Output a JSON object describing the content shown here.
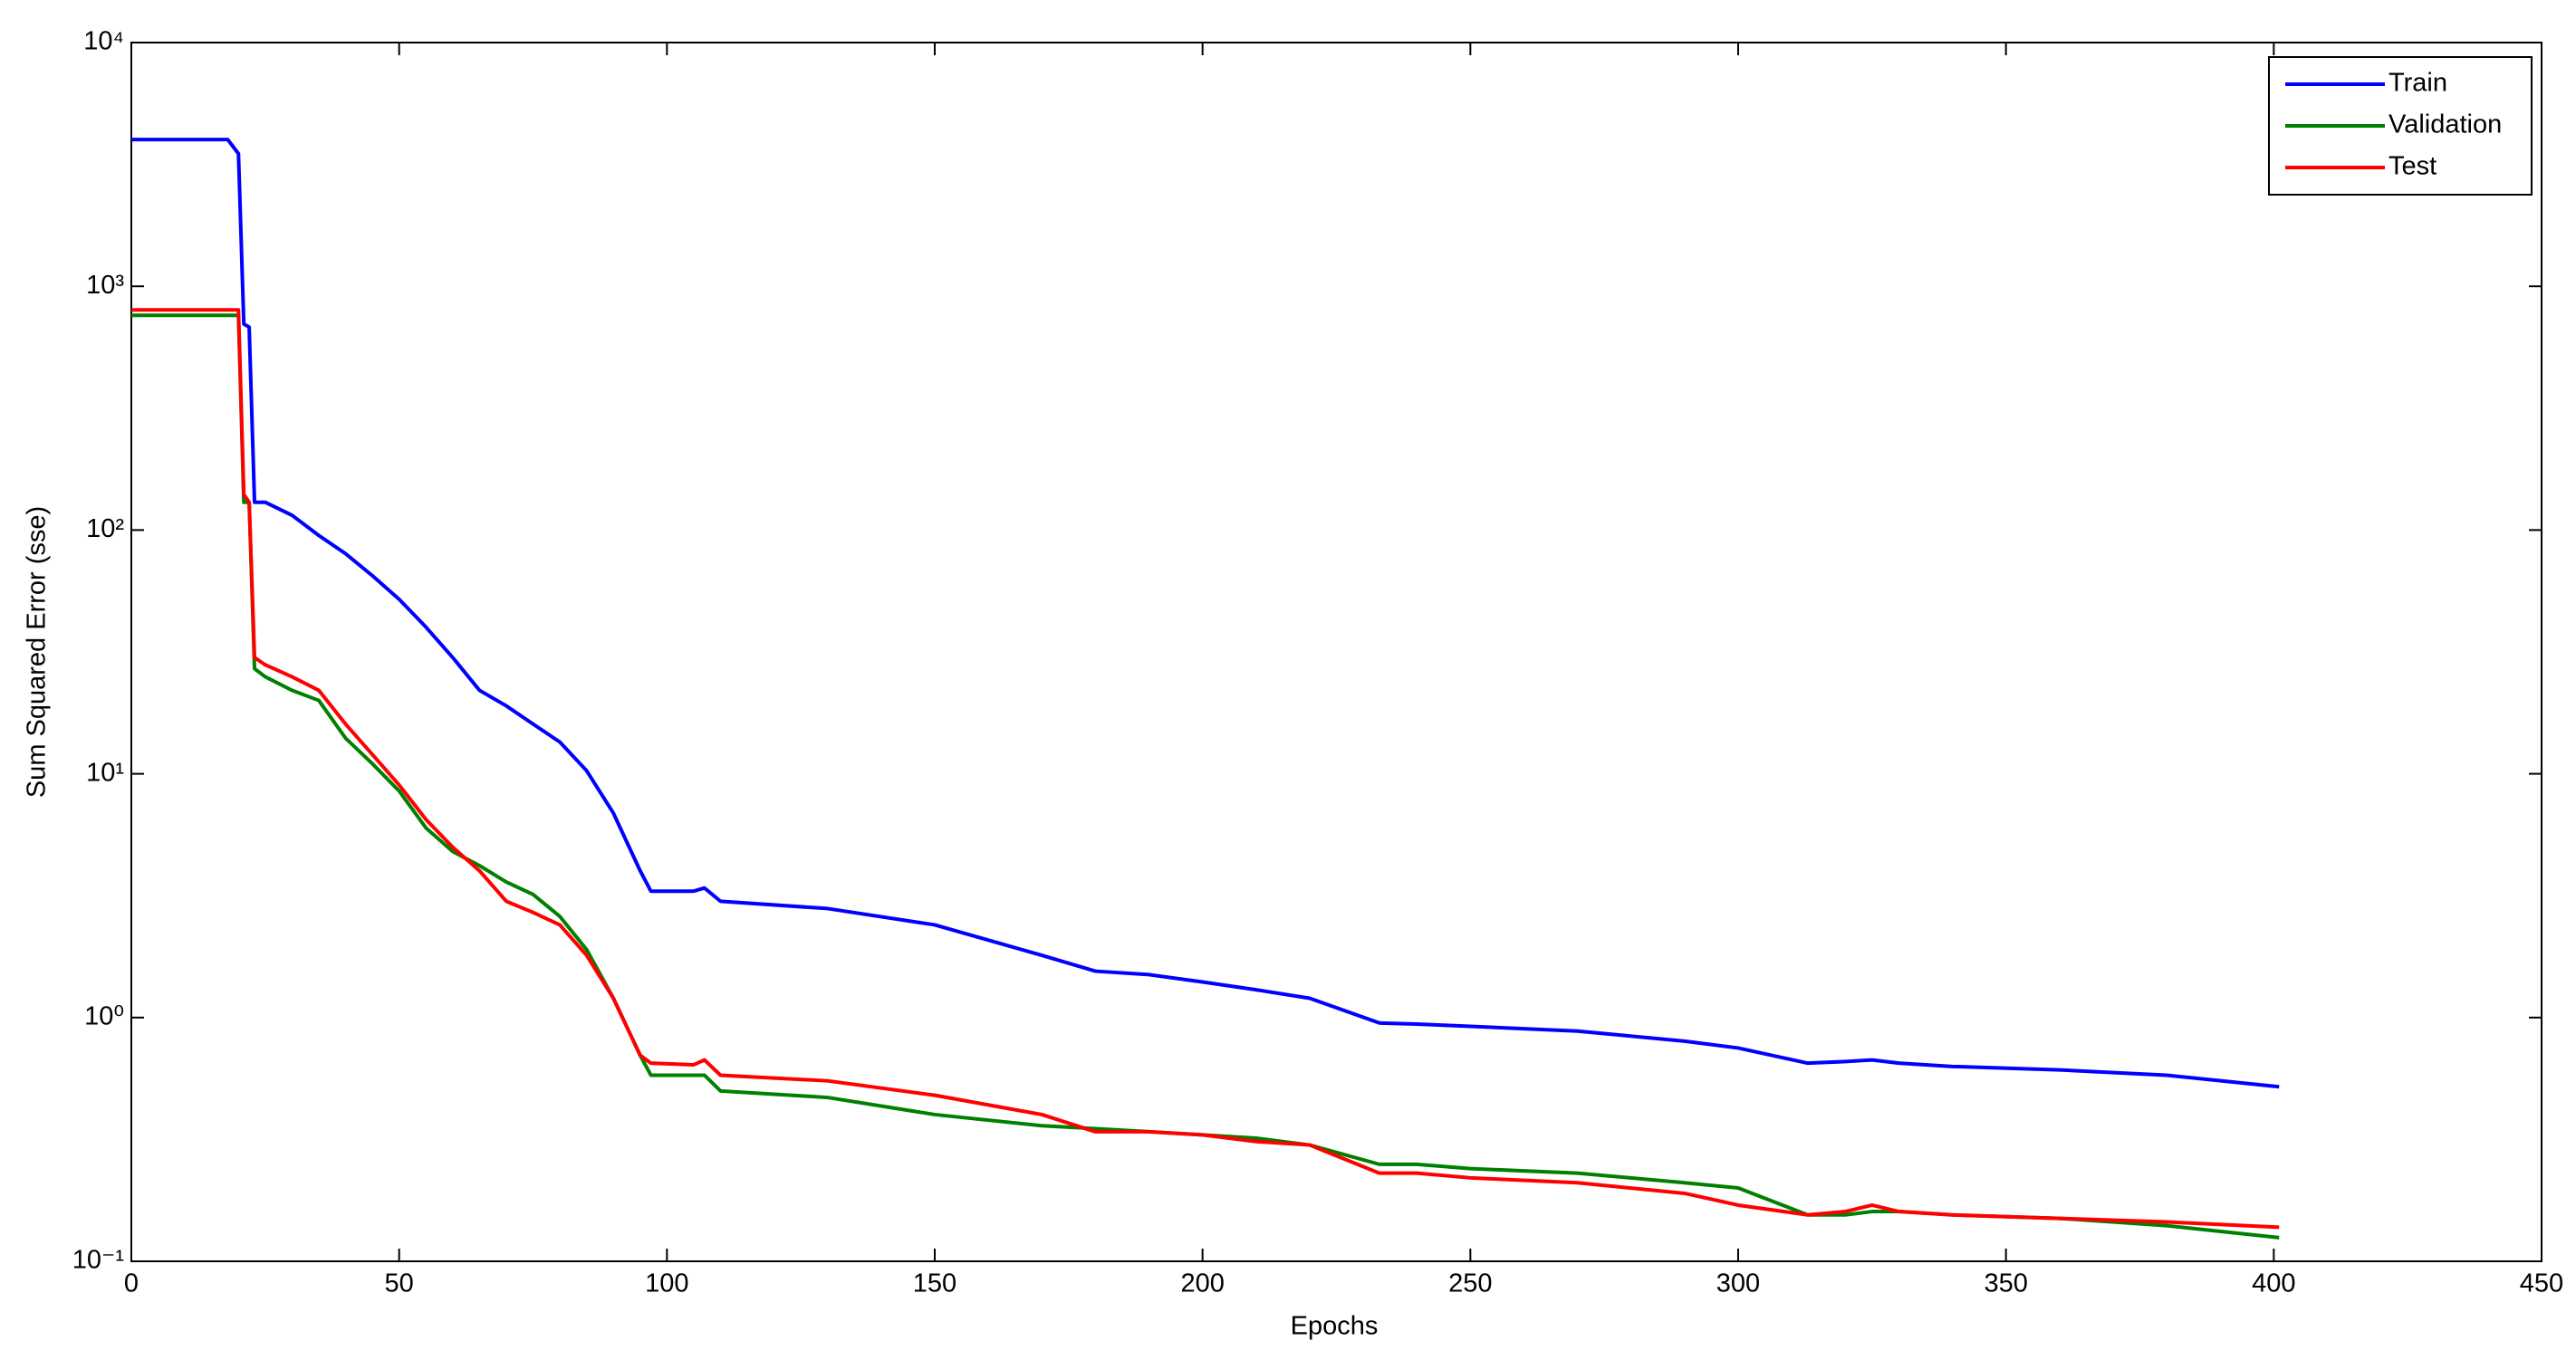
{
  "chart_data": {
    "type": "line",
    "xlabel": "Epochs",
    "ylabel": "Sum Squared Error (sse)",
    "yscale": "log",
    "legend": "upper right",
    "x": [
      0,
      18,
      20,
      21,
      22,
      23,
      25,
      30,
      35,
      40,
      45,
      50,
      55,
      60,
      65,
      70,
      75,
      80,
      85,
      90,
      95,
      97,
      105,
      107,
      110,
      130,
      150,
      170,
      180,
      190,
      200,
      210,
      220,
      233,
      240,
      250,
      270,
      290,
      300,
      313,
      320,
      325,
      330,
      340,
      360,
      380,
      401
    ],
    "series": [
      {
        "name": "Train",
        "color": "#0000ff",
        "values": [
          4000,
          4000,
          3500,
          700,
          680,
          130,
          130,
          115,
          95,
          80,
          65,
          52,
          40,
          30,
          22,
          19,
          16,
          13.5,
          10.3,
          6.9,
          4,
          3.3,
          3.3,
          3.4,
          3.0,
          2.8,
          2.4,
          1.8,
          1.55,
          1.5,
          1.4,
          1.3,
          1.2,
          0.95,
          0.94,
          0.92,
          0.88,
          0.8,
          0.75,
          0.65,
          0.66,
          0.67,
          0.65,
          0.63,
          0.61,
          0.58,
          0.52
        ]
      },
      {
        "name": "Validation",
        "color": "#008000",
        "values": [
          760,
          760,
          760,
          130,
          130,
          27,
          25,
          22,
          20,
          14,
          11,
          8.5,
          6,
          4.8,
          4.2,
          3.6,
          3.2,
          2.6,
          1.9,
          1.2,
          0.7,
          0.58,
          0.58,
          0.58,
          0.5,
          0.47,
          0.4,
          0.36,
          0.35,
          0.34,
          0.33,
          0.32,
          0.3,
          0.25,
          0.25,
          0.24,
          0.23,
          0.21,
          0.2,
          0.155,
          0.155,
          0.16,
          0.16,
          0.155,
          0.15,
          0.14,
          0.125
        ]
      },
      {
        "name": "Test",
        "color": "#ff0000",
        "values": [
          800,
          800,
          800,
          140,
          130,
          30,
          28,
          25,
          22,
          16,
          12,
          9,
          6.5,
          5,
          4,
          3,
          2.7,
          2.4,
          1.8,
          1.2,
          0.7,
          0.65,
          0.64,
          0.67,
          0.58,
          0.55,
          0.48,
          0.4,
          0.34,
          0.34,
          0.33,
          0.31,
          0.3,
          0.23,
          0.23,
          0.22,
          0.21,
          0.19,
          0.17,
          0.155,
          0.16,
          0.17,
          0.16,
          0.155,
          0.15,
          0.145,
          0.138
        ]
      }
    ],
    "xlim": [
      0,
      450
    ],
    "xticks": [
      0,
      50,
      100,
      150,
      200,
      250,
      300,
      350,
      400,
      450
    ],
    "ylim": [
      0.1,
      10000
    ],
    "yticks": [
      {
        "value": 0.1,
        "label": "10⁻¹"
      },
      {
        "value": 1,
        "label": "10⁰"
      },
      {
        "value": 10,
        "label": "10¹"
      },
      {
        "value": 100,
        "label": "10²"
      },
      {
        "value": 1000,
        "label": "10³"
      },
      {
        "value": 10000,
        "label": "10⁴"
      }
    ]
  }
}
